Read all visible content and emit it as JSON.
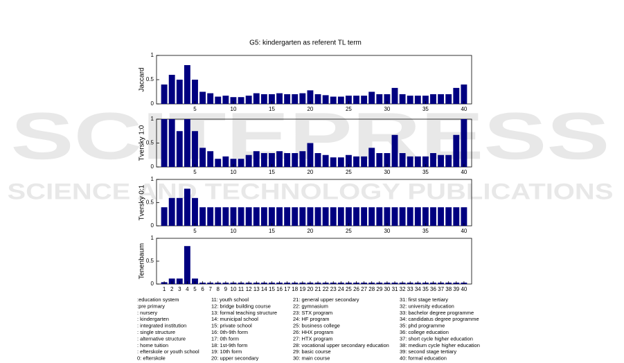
{
  "title": "G5: kindergarten as referent TL term",
  "watermark": {
    "brand": "SCITEPRESS",
    "subtitle": "SCIENCE AND TECHNOLOGY PUBLICATIONS"
  },
  "chart_data": [
    {
      "type": "bar",
      "ylabel": "Jaccard",
      "color": "#000080",
      "x": [
        1,
        2,
        3,
        4,
        5,
        6,
        7,
        8,
        9,
        10,
        11,
        12,
        13,
        14,
        15,
        16,
        17,
        18,
        19,
        20,
        21,
        22,
        23,
        24,
        25,
        26,
        27,
        28,
        29,
        30,
        31,
        32,
        33,
        34,
        35,
        36,
        37,
        38,
        39,
        40
      ],
      "values": [
        0.4,
        0.6,
        0.5,
        0.8,
        0.5,
        0.25,
        0.22,
        0.15,
        0.17,
        0.14,
        0.14,
        0.17,
        0.22,
        0.2,
        0.2,
        0.22,
        0.2,
        0.2,
        0.22,
        0.28,
        0.2,
        0.18,
        0.15,
        0.15,
        0.17,
        0.17,
        0.17,
        0.25,
        0.2,
        0.2,
        0.33,
        0.2,
        0.17,
        0.17,
        0.17,
        0.2,
        0.2,
        0.2,
        0.33,
        0.4
      ],
      "xlim": [
        0,
        41
      ],
      "xticks": [
        5,
        10,
        15,
        20,
        25,
        30,
        35,
        40
      ],
      "ylim": [
        0,
        1
      ],
      "yticks": [
        0,
        0.5,
        1
      ]
    },
    {
      "type": "bar",
      "ylabel": "Tversky 1:0",
      "color": "#000080",
      "x": [
        1,
        2,
        3,
        4,
        5,
        6,
        7,
        8,
        9,
        10,
        11,
        12,
        13,
        14,
        15,
        16,
        17,
        18,
        19,
        20,
        21,
        22,
        23,
        24,
        25,
        26,
        27,
        28,
        29,
        30,
        31,
        32,
        33,
        34,
        35,
        36,
        37,
        38,
        39,
        40
      ],
      "values": [
        1,
        1,
        0.75,
        1,
        0.75,
        0.4,
        0.33,
        0.17,
        0.22,
        0.17,
        0.17,
        0.25,
        0.33,
        0.29,
        0.29,
        0.33,
        0.29,
        0.29,
        0.33,
        0.5,
        0.29,
        0.25,
        0.2,
        0.2,
        0.25,
        0.22,
        0.22,
        0.4,
        0.29,
        0.29,
        0.67,
        0.29,
        0.22,
        0.22,
        0.22,
        0.29,
        0.25,
        0.25,
        0.67,
        1
      ],
      "xlim": [
        0,
        41
      ],
      "xticks": [
        5,
        10,
        15,
        20,
        25,
        30,
        35,
        40
      ],
      "ylim": [
        0,
        1
      ],
      "yticks": [
        0,
        0.5,
        1
      ]
    },
    {
      "type": "bar",
      "ylabel": "Tversky 0:1",
      "color": "#000080",
      "x": [
        1,
        2,
        3,
        4,
        5,
        6,
        7,
        8,
        9,
        10,
        11,
        12,
        13,
        14,
        15,
        16,
        17,
        18,
        19,
        20,
        21,
        22,
        23,
        24,
        25,
        26,
        27,
        28,
        29,
        30,
        31,
        32,
        33,
        34,
        35,
        36,
        37,
        38,
        39,
        40
      ],
      "values": [
        0.4,
        0.6,
        0.6,
        0.8,
        0.6,
        0.4,
        0.4,
        0.4,
        0.4,
        0.4,
        0.4,
        0.4,
        0.4,
        0.4,
        0.4,
        0.4,
        0.4,
        0.4,
        0.4,
        0.4,
        0.4,
        0.4,
        0.4,
        0.4,
        0.4,
        0.4,
        0.4,
        0.4,
        0.4,
        0.4,
        0.4,
        0.4,
        0.4,
        0.4,
        0.4,
        0.4,
        0.4,
        0.4,
        0.4,
        0.4
      ],
      "xlim": [
        0,
        41
      ],
      "xticks": [
        5,
        10,
        15,
        20,
        25,
        30,
        35,
        40
      ],
      "ylim": [
        0,
        1
      ],
      "yticks": [
        0,
        0.5,
        1
      ]
    },
    {
      "type": "bar",
      "ylabel": "Tenenbaum",
      "color": "#000080",
      "x": [
        1,
        2,
        3,
        4,
        5,
        6,
        7,
        8,
        9,
        10,
        11,
        12,
        13,
        14,
        15,
        16,
        17,
        18,
        19,
        20,
        21,
        22,
        23,
        24,
        25,
        26,
        27,
        28,
        29,
        30,
        31,
        32,
        33,
        34,
        35,
        36,
        37,
        38,
        39,
        40
      ],
      "values": [
        0.04,
        0.12,
        0.12,
        0.83,
        0.12,
        0.03,
        0.03,
        0.03,
        0.03,
        0.03,
        0.03,
        0.03,
        0.03,
        0.03,
        0.03,
        0.03,
        0.03,
        0.03,
        0.03,
        0.03,
        0.03,
        0.03,
        0.03,
        0.03,
        0.03,
        0.03,
        0.03,
        0.03,
        0.03,
        0.03,
        0.03,
        0.03,
        0.03,
        0.03,
        0.03,
        0.03,
        0.03,
        0.03,
        0.03,
        0.03
      ],
      "xlim": [
        0,
        41
      ],
      "xticks": [
        1,
        2,
        3,
        4,
        5,
        6,
        7,
        8,
        9,
        10,
        11,
        12,
        13,
        14,
        15,
        16,
        17,
        18,
        19,
        20,
        21,
        22,
        23,
        24,
        25,
        26,
        27,
        28,
        29,
        30,
        31,
        32,
        33,
        34,
        35,
        36,
        37,
        38,
        39,
        40
      ],
      "ylim": [
        0,
        1
      ],
      "yticks": [
        0,
        0.5,
        1
      ]
    }
  ],
  "legend": [
    ":education system",
    ":pre primary",
    ": nursery",
    ": kindergarten",
    ": integrated institution",
    ": single structure",
    ": alternative structure",
    ": home tuition",
    ": efterskole or youth school",
    "0: efterskole",
    "11: youth school",
    "12: bridge building course",
    "13: formal teaching structure",
    "14: municipal school",
    "15: private school",
    "16: 0th-9th form",
    "17: 0th form",
    "18: 1st-9th form",
    "19: 10th form",
    "20: upper secondary",
    "21: general upper secondary",
    "22: gymnasium",
    "23: STX program",
    "24: HF program",
    "25: business college",
    "26: HHX program",
    "27: HTX program",
    "28: vocational upper secondary education",
    "29: basic course",
    "30: main course",
    "31: first stage tertiary",
    "32: university education",
    "33: bachelor degree programme",
    "34: candidatus degree programme",
    "35: phd programme",
    "36: college education",
    "37: short cycle higher education",
    "38: medium cycle higher education",
    "39: second stage tertiary",
    "40: formal education"
  ]
}
